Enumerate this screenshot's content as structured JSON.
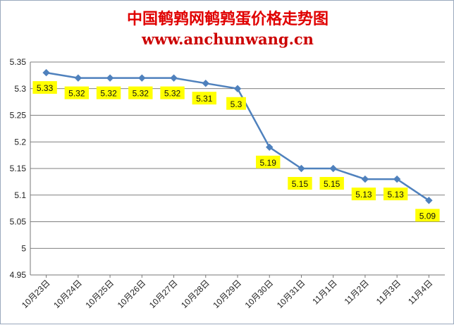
{
  "header": {
    "title": "中国鹌鹑网鹌鹑蛋价格走势图",
    "subtitle": "www.anchunwang.cn"
  },
  "colors": {
    "title": "#e00000",
    "line": "#4f81bd",
    "label_bg": "#ffff00",
    "grid": "#555555"
  },
  "chart_data": {
    "type": "line",
    "categories": [
      "10月23日",
      "10月24日",
      "10月25日",
      "10月26日",
      "10月27日",
      "10月28日",
      "10月29日",
      "10月30日",
      "10月31日",
      "11月1日",
      "11月2日",
      "11月3日",
      "11月4日"
    ],
    "series": [
      {
        "values": [
          5.33,
          5.32,
          5.32,
          5.32,
          5.32,
          5.31,
          5.3,
          5.19,
          5.15,
          5.15,
          5.13,
          5.13,
          5.09
        ]
      }
    ],
    "y_ticks": [
      "4.95",
      "5",
      "5.05",
      "5.1",
      "5.15",
      "5.2",
      "5.25",
      "5.3",
      "5.35"
    ],
    "ylim": [
      4.95,
      5.35
    ],
    "grid": "horizontal",
    "data_labels": [
      "5.33",
      "5.32",
      "5.32",
      "5.32",
      "5.32",
      "5.31",
      "5.3",
      "5.19",
      "5.15",
      "5.15",
      "5.13",
      "5.13",
      "5.09"
    ]
  }
}
